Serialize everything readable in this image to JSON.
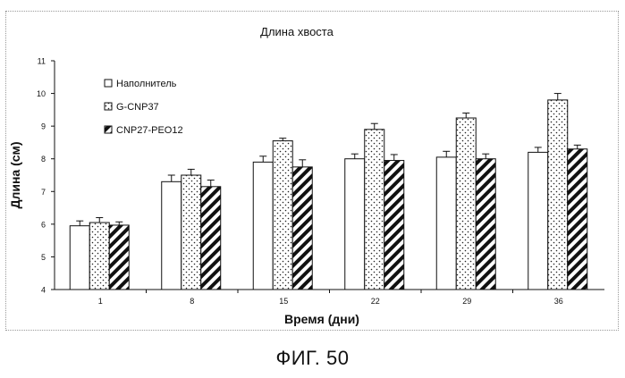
{
  "figure_caption": "ФИГ. 50",
  "chart_data": {
    "type": "bar",
    "title": "Длина хвоста",
    "xlabel": "Время (дни)",
    "ylabel": "Длина (см)",
    "ylim": [
      4,
      11
    ],
    "yticks": [
      4,
      5,
      6,
      7,
      8,
      9,
      10,
      11
    ],
    "categories": [
      "1",
      "8",
      "15",
      "22",
      "29",
      "36"
    ],
    "series": [
      {
        "name": "Наполнитель",
        "pattern": "plain",
        "values": [
          5.95,
          7.3,
          7.9,
          8.0,
          8.05,
          8.2
        ],
        "errors": [
          0.15,
          0.2,
          0.18,
          0.15,
          0.18,
          0.15
        ]
      },
      {
        "name": "G-CNP37",
        "pattern": "dots",
        "values": [
          6.05,
          7.5,
          8.55,
          8.9,
          9.25,
          9.8
        ],
        "errors": [
          0.15,
          0.18,
          0.08,
          0.18,
          0.15,
          0.2
        ]
      },
      {
        "name": "CNP27-PEO12",
        "pattern": "diagonal",
        "values": [
          5.97,
          7.15,
          7.75,
          7.95,
          8.0,
          8.3
        ],
        "errors": [
          0.1,
          0.2,
          0.22,
          0.18,
          0.15,
          0.12
        ]
      }
    ],
    "legend_position": "top-left",
    "grid": false
  }
}
